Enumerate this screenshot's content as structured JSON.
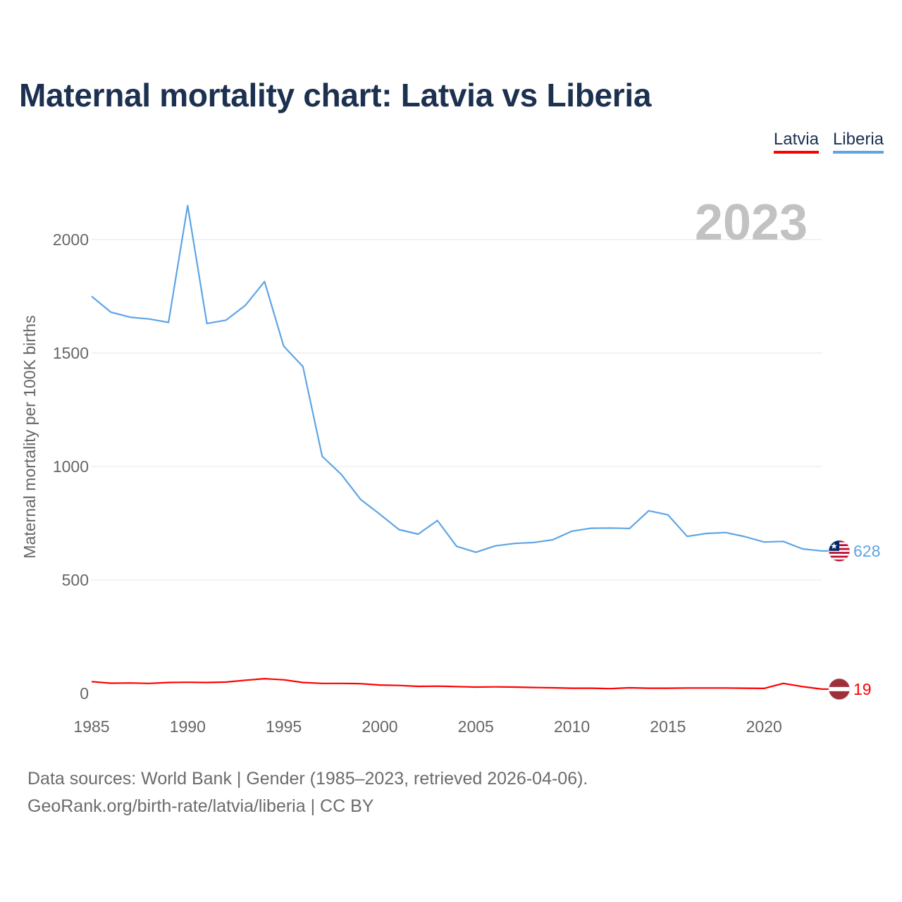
{
  "title": "Maternal mortality chart: Latvia vs Liberia",
  "legend": {
    "latvia": "Latvia",
    "liberia": "Liberia"
  },
  "year_watermark": "2023",
  "footer": {
    "line1": "Data sources: World Bank | Gender (1985–2023, retrieved 2026-04-06).",
    "line2": "GeoRank.org/birth-rate/latvia/liberia | CC BY"
  },
  "colors": {
    "latvia": "#ff0000",
    "liberia": "#5ea5e5",
    "grid": "#e6e6e6",
    "axis_text": "#666666"
  },
  "chart_data": {
    "type": "line",
    "title": "Maternal mortality chart: Latvia vs Liberia",
    "ylabel": "Maternal mortality per 100K births",
    "xlabel": "",
    "x": [
      1985,
      1986,
      1987,
      1988,
      1989,
      1990,
      1991,
      1992,
      1993,
      1994,
      1995,
      1996,
      1997,
      1998,
      1999,
      2000,
      2001,
      2002,
      2003,
      2004,
      2005,
      2006,
      2007,
      2008,
      2009,
      2010,
      2011,
      2012,
      2013,
      2014,
      2015,
      2016,
      2017,
      2018,
      2019,
      2020,
      2021,
      2022,
      2023
    ],
    "xlim": [
      1985,
      2023
    ],
    "ylim": [
      0,
      2000
    ],
    "xticks": [
      1985,
      1990,
      1995,
      2000,
      2005,
      2010,
      2015,
      2020
    ],
    "yticks": [
      0,
      500,
      1000,
      1500,
      2000
    ],
    "grid": true,
    "legend_position": "top-right",
    "series": [
      {
        "name": "Latvia",
        "end_label": "19",
        "values": [
          52,
          45,
          46,
          44,
          48,
          49,
          48,
          50,
          58,
          65,
          60,
          48,
          44,
          44,
          43,
          37,
          35,
          31,
          32,
          30,
          28,
          29,
          28,
          26,
          25,
          23,
          23,
          21,
          25,
          23,
          23,
          24,
          24,
          24,
          23,
          22,
          44,
          30,
          19
        ]
      },
      {
        "name": "Liberia",
        "end_label": "628",
        "values": [
          1750,
          1680,
          1658,
          1650,
          1635,
          2150,
          1630,
          1645,
          1710,
          1815,
          1530,
          1440,
          1045,
          965,
          855,
          790,
          722,
          702,
          762,
          648,
          622,
          650,
          661,
          665,
          677,
          715,
          728,
          729,
          727,
          805,
          787,
          692,
          705,
          709,
          691,
          667,
          670,
          637,
          628
        ]
      }
    ]
  }
}
